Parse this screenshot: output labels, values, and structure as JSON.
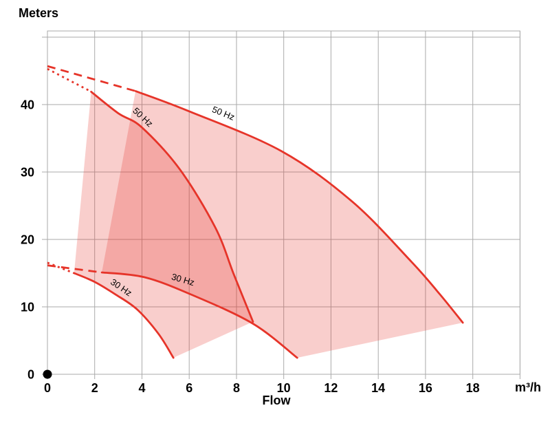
{
  "chart_data": {
    "type": "area",
    "title": "",
    "ylabel": "Meters",
    "xlabel": "Flow",
    "x_unit": "m³/h",
    "xlim": [
      0,
      20
    ],
    "ylim": [
      0,
      51
    ],
    "x_ticks": [
      0,
      2,
      4,
      6,
      8,
      10,
      12,
      14,
      16,
      18
    ],
    "y_ticks": [
      0,
      10,
      20,
      30,
      40
    ],
    "grid": true,
    "legend": "none",
    "colors": {
      "curve": "#e63429",
      "fill": "#e63429",
      "fill_opacity": 0.24,
      "grid": "#aaaaaa",
      "text": "#000000",
      "marker": "#000000"
    },
    "origin_marker": {
      "x": 0,
      "y": 0
    },
    "envelopes": [
      {
        "name": "small-pump-envelope",
        "hz50": {
          "label": "50 Hz",
          "points": [
            [
              1.85,
              41.9
            ],
            [
              3.0,
              38.7
            ],
            [
              4.0,
              36.6
            ],
            [
              5.6,
              30.4
            ],
            [
              7.1,
              21.8
            ],
            [
              7.9,
              14.7
            ],
            [
              8.7,
              7.8
            ]
          ],
          "label_pos": [
            3.95,
            37.8
          ],
          "label_angle": 43
        },
        "hz30": {
          "label": "30 Hz",
          "points": [
            [
              1.13,
              15.0
            ],
            [
              2.0,
              13.7
            ],
            [
              2.9,
              11.8
            ],
            [
              3.8,
              9.6
            ],
            [
              4.7,
              6.0
            ],
            [
              5.33,
              2.45
            ]
          ],
          "label_pos": [
            3.05,
            12.5
          ],
          "label_angle": 34
        }
      },
      {
        "name": "large-pump-envelope",
        "hz50": {
          "label": "50 Hz",
          "points": [
            [
              3.73,
              42.0
            ],
            [
              6.0,
              39.0
            ],
            [
              9.9,
              33.1
            ],
            [
              12.9,
              25.6
            ],
            [
              15.4,
              16.7
            ],
            [
              16.6,
              11.9
            ],
            [
              17.58,
              7.65
            ]
          ],
          "label_pos": [
            7.4,
            38.3
          ],
          "label_angle": 22
        },
        "hz30": {
          "label": "30 Hz",
          "points": [
            [
              2.3,
              15.1
            ],
            [
              4.1,
              14.4
            ],
            [
              6.1,
              11.8
            ],
            [
              8.7,
              7.5
            ],
            [
              10.57,
              2.45
            ]
          ],
          "label_pos": [
            5.7,
            13.6
          ],
          "label_angle": 16
        }
      }
    ],
    "dashed_extensions": [
      {
        "style": "dash",
        "from": [
          0,
          45.7
        ],
        "to": [
          3.73,
          42.0
        ]
      },
      {
        "style": "dot",
        "from": [
          0,
          45.3
        ],
        "to": [
          1.86,
          41.9
        ]
      },
      {
        "style": "dot",
        "from": [
          0,
          16.55
        ],
        "to": [
          1.13,
          15.0
        ]
      },
      {
        "style": "dash",
        "from": [
          0,
          16.15
        ],
        "to": [
          2.3,
          15.1
        ]
      }
    ]
  }
}
